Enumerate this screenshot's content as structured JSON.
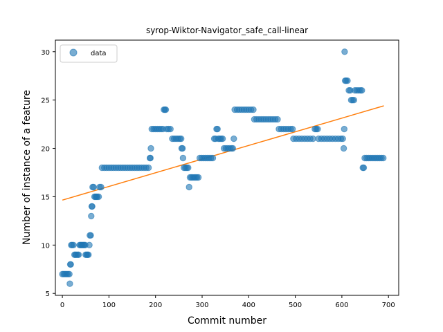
{
  "chart_data": {
    "type": "scatter",
    "title": "syrop-Wiktor-Navigator_safe_call-linear",
    "xlabel": "Commit number",
    "ylabel": "Number of instance of a feature",
    "xlim": [
      -15,
      722
    ],
    "ylim": [
      4.8,
      31.2
    ],
    "xticks": [
      0,
      100,
      200,
      300,
      400,
      500,
      600,
      700
    ],
    "yticks": [
      5,
      10,
      15,
      20,
      25,
      30
    ],
    "grid": false,
    "legend": {
      "placement": "top-left",
      "entries": [
        "data"
      ]
    },
    "colors": {
      "scatter": "#1f77b4",
      "fit": "#ff7f0e"
    },
    "series": [
      {
        "name": "data",
        "kind": "scatter",
        "points": [
          [
            0,
            7
          ],
          [
            3,
            7
          ],
          [
            6,
            7
          ],
          [
            9,
            7
          ],
          [
            12,
            7
          ],
          [
            15,
            7
          ],
          [
            16,
            6
          ],
          [
            17,
            8
          ],
          [
            18,
            8
          ],
          [
            19,
            10
          ],
          [
            21,
            10
          ],
          [
            24,
            10
          ],
          [
            26,
            9
          ],
          [
            28,
            9
          ],
          [
            30,
            9
          ],
          [
            33,
            9
          ],
          [
            35,
            9
          ],
          [
            37,
            10
          ],
          [
            39,
            10
          ],
          [
            41,
            10
          ],
          [
            43,
            10
          ],
          [
            45,
            10
          ],
          [
            47,
            10
          ],
          [
            49,
            10
          ],
          [
            50,
            9
          ],
          [
            52,
            9
          ],
          [
            54,
            9
          ],
          [
            56,
            9
          ],
          [
            58,
            10
          ],
          [
            59,
            11
          ],
          [
            61,
            11
          ],
          [
            62,
            13
          ],
          [
            63,
            14
          ],
          [
            64,
            14
          ],
          [
            65,
            16
          ],
          [
            67,
            16
          ],
          [
            69,
            15
          ],
          [
            71,
            15
          ],
          [
            73,
            15
          ],
          [
            75,
            15
          ],
          [
            78,
            15
          ],
          [
            80,
            16
          ],
          [
            83,
            16
          ],
          [
            85,
            18
          ],
          [
            90,
            18
          ],
          [
            95,
            18
          ],
          [
            100,
            18
          ],
          [
            105,
            18
          ],
          [
            110,
            18
          ],
          [
            115,
            18
          ],
          [
            120,
            18
          ],
          [
            125,
            18
          ],
          [
            130,
            18
          ],
          [
            135,
            18
          ],
          [
            140,
            18
          ],
          [
            145,
            18
          ],
          [
            150,
            18
          ],
          [
            155,
            18
          ],
          [
            160,
            18
          ],
          [
            165,
            18
          ],
          [
            170,
            18
          ],
          [
            175,
            18
          ],
          [
            180,
            18
          ],
          [
            185,
            18
          ],
          [
            188,
            19
          ],
          [
            189,
            19
          ],
          [
            190,
            20
          ],
          [
            192,
            22
          ],
          [
            196,
            22
          ],
          [
            200,
            22
          ],
          [
            204,
            22
          ],
          [
            208,
            22
          ],
          [
            212,
            22
          ],
          [
            216,
            22
          ],
          [
            218,
            24
          ],
          [
            220,
            24
          ],
          [
            222,
            24
          ],
          [
            224,
            22
          ],
          [
            228,
            22
          ],
          [
            232,
            22
          ],
          [
            236,
            21
          ],
          [
            240,
            21
          ],
          [
            244,
            21
          ],
          [
            248,
            21
          ],
          [
            252,
            21
          ],
          [
            255,
            21
          ],
          [
            256,
            20
          ],
          [
            258,
            20
          ],
          [
            259,
            19
          ],
          [
            261,
            18
          ],
          [
            264,
            18
          ],
          [
            267,
            18
          ],
          [
            270,
            18
          ],
          [
            272,
            16
          ],
          [
            274,
            17
          ],
          [
            277,
            17
          ],
          [
            280,
            17
          ],
          [
            283,
            17
          ],
          [
            286,
            17
          ],
          [
            289,
            17
          ],
          [
            292,
            17
          ],
          [
            295,
            19
          ],
          [
            299,
            19
          ],
          [
            303,
            19
          ],
          [
            307,
            19
          ],
          [
            311,
            19
          ],
          [
            315,
            19
          ],
          [
            319,
            19
          ],
          [
            323,
            19
          ],
          [
            326,
            21
          ],
          [
            329,
            21
          ],
          [
            331,
            22
          ],
          [
            333,
            22
          ],
          [
            335,
            21
          ],
          [
            338,
            21
          ],
          [
            341,
            21
          ],
          [
            344,
            21
          ],
          [
            347,
            20
          ],
          [
            351,
            20
          ],
          [
            355,
            20
          ],
          [
            359,
            20
          ],
          [
            363,
            20
          ],
          [
            366,
            20
          ],
          [
            368,
            21
          ],
          [
            370,
            24
          ],
          [
            375,
            24
          ],
          [
            380,
            24
          ],
          [
            385,
            24
          ],
          [
            390,
            24
          ],
          [
            395,
            24
          ],
          [
            400,
            24
          ],
          [
            405,
            24
          ],
          [
            410,
            24
          ],
          [
            412,
            23
          ],
          [
            417,
            23
          ],
          [
            422,
            23
          ],
          [
            427,
            23
          ],
          [
            432,
            23
          ],
          [
            437,
            23
          ],
          [
            442,
            23
          ],
          [
            447,
            23
          ],
          [
            452,
            23
          ],
          [
            457,
            23
          ],
          [
            462,
            23
          ],
          [
            465,
            22
          ],
          [
            470,
            22
          ],
          [
            475,
            22
          ],
          [
            480,
            22
          ],
          [
            485,
            22
          ],
          [
            490,
            22
          ],
          [
            494,
            22
          ],
          [
            496,
            21
          ],
          [
            502,
            21
          ],
          [
            508,
            21
          ],
          [
            514,
            21
          ],
          [
            520,
            21
          ],
          [
            526,
            21
          ],
          [
            532,
            21
          ],
          [
            538,
            21
          ],
          [
            542,
            22
          ],
          [
            545,
            22
          ],
          [
            548,
            22
          ],
          [
            550,
            21
          ],
          [
            556,
            21
          ],
          [
            562,
            21
          ],
          [
            568,
            21
          ],
          [
            574,
            21
          ],
          [
            580,
            21
          ],
          [
            586,
            21
          ],
          [
            592,
            21
          ],
          [
            598,
            21
          ],
          [
            602,
            21
          ],
          [
            604,
            20
          ],
          [
            605,
            22
          ],
          [
            606,
            30
          ],
          [
            607,
            27
          ],
          [
            609,
            27
          ],
          [
            612,
            27
          ],
          [
            615,
            26
          ],
          [
            618,
            26
          ],
          [
            620,
            25
          ],
          [
            623,
            25
          ],
          [
            626,
            25
          ],
          [
            628,
            26
          ],
          [
            632,
            26
          ],
          [
            636,
            26
          ],
          [
            640,
            26
          ],
          [
            643,
            26
          ],
          [
            645,
            18
          ],
          [
            647,
            18
          ],
          [
            649,
            19
          ],
          [
            653,
            19
          ],
          [
            657,
            19
          ],
          [
            661,
            19
          ],
          [
            665,
            19
          ],
          [
            669,
            19
          ],
          [
            673,
            19
          ],
          [
            677,
            19
          ],
          [
            681,
            19
          ],
          [
            685,
            19
          ],
          [
            689,
            19
          ]
        ]
      },
      {
        "name": "",
        "kind": "line",
        "x": [
          0,
          690
        ],
        "y": [
          14.65,
          24.4
        ]
      }
    ]
  }
}
